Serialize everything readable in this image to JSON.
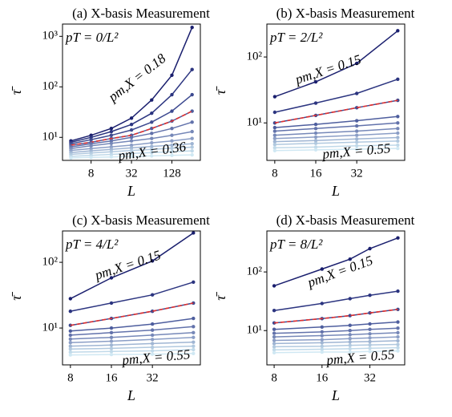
{
  "chart_data": [
    {
      "type": "line",
      "title": "(a) X-basis Measurement",
      "xlabel": "L",
      "ylabel": "τ̄",
      "xlog": true,
      "ylog": true,
      "x": [
        4,
        8,
        16,
        32,
        64,
        128,
        256
      ],
      "xlim": [
        3,
        340
      ],
      "xticks": [
        8,
        32,
        128
      ],
      "ylim": [
        3.5,
        1750
      ],
      "yticks": [
        {
          "value": 10,
          "label": "10¹"
        },
        {
          "value": 100,
          "label": "10²"
        },
        {
          "value": 1000,
          "label": "10³"
        }
      ],
      "annotations": [
        {
          "text": "pT = 0/L²",
          "color": "#1a1f6e"
        },
        {
          "text": "pm,X = 0.18",
          "color": "#1a1f6e"
        },
        {
          "text": "pm,X = 0.36",
          "color": "#c8e6f2"
        }
      ],
      "series": [
        {
          "color": "#1a1f6e",
          "values": [
            8.5,
            11,
            15,
            24,
            55,
            170,
            1500
          ]
        },
        {
          "color": "#2c3580",
          "values": [
            8,
            10,
            13,
            18,
            30,
            70,
            220
          ]
        },
        {
          "color": "#3d4a90",
          "values": [
            7.5,
            9,
            11,
            14,
            20,
            33,
            70
          ]
        },
        {
          "color": "#4e5e9e",
          "values": [
            7,
            8,
            9.5,
            11,
            15,
            21,
            33
          ]
        },
        {
          "color": "#e03030",
          "dash": true,
          "values": [
            7,
            8,
            9.5,
            11,
            15,
            21,
            33
          ]
        },
        {
          "color": "#6272ab",
          "values": [
            6.5,
            7.5,
            8.5,
            10,
            12,
            15,
            20
          ]
        },
        {
          "color": "#7688b8",
          "values": [
            6,
            6.8,
            7.6,
            8.5,
            9.5,
            11,
            13
          ]
        },
        {
          "color": "#8b9ec6",
          "values": [
            5.5,
            6,
            6.5,
            7,
            7.8,
            8.5,
            9.5
          ]
        },
        {
          "color": "#9fb5d3",
          "values": [
            5,
            5.4,
            5.8,
            6.2,
            6.6,
            7,
            7.5
          ]
        },
        {
          "color": "#b1c9df",
          "values": [
            4.6,
            4.9,
            5.2,
            5.5,
            5.8,
            6.1,
            6.4
          ]
        },
        {
          "color": "#c0d9e9",
          "values": [
            4.2,
            4.4,
            4.6,
            4.8,
            5,
            5.2,
            5.4
          ]
        },
        {
          "color": "#d0e8f3",
          "values": [
            3.9,
            4,
            4.1,
            4.2,
            4.3,
            4.4,
            4.5
          ]
        }
      ]
    },
    {
      "type": "line",
      "title": "(b) X-basis Measurement",
      "xlabel": "L",
      "ylabel": "τ̄",
      "xlog": true,
      "ylog": true,
      "x": [
        8,
        16,
        32,
        64
      ],
      "xlim": [
        7,
        72
      ],
      "xticks": [
        8,
        16,
        32
      ],
      "ylim": [
        2.7,
        316
      ],
      "yticks": [
        {
          "value": 10,
          "label": "10¹"
        },
        {
          "value": 100,
          "label": "10²"
        }
      ],
      "annotations": [
        {
          "text": "pT = 2/L²",
          "color": "#1a1f6e"
        },
        {
          "text": "pm,X = 0.15",
          "color": "#1a1f6e"
        },
        {
          "text": "pm,X = 0.55",
          "color": "#c8e6f2"
        }
      ],
      "series": [
        {
          "color": "#1a1f6e",
          "values": [
            25,
            42,
            80,
            250
          ]
        },
        {
          "color": "#2c3580",
          "values": [
            14.5,
            20,
            28,
            46
          ]
        },
        {
          "color": "#3d4a90",
          "values": [
            10,
            13,
            17,
            22
          ]
        },
        {
          "color": "#e03030",
          "dash": true,
          "values": [
            10,
            13,
            17,
            22
          ]
        },
        {
          "color": "#4e5e9e",
          "values": [
            8.5,
            9.5,
            10.8,
            12.5
          ]
        },
        {
          "color": "#6272ab",
          "values": [
            7.5,
            8.2,
            9,
            10
          ]
        },
        {
          "color": "#7688b8",
          "values": [
            6.5,
            7,
            7.5,
            8.2
          ]
        },
        {
          "color": "#8b9ec6",
          "values": [
            5.8,
            6.1,
            6.5,
            7
          ]
        },
        {
          "color": "#9fb5d3",
          "values": [
            5.2,
            5.4,
            5.7,
            6
          ]
        },
        {
          "color": "#b1c9df",
          "values": [
            4.7,
            4.9,
            5.1,
            5.3
          ]
        },
        {
          "color": "#c0d9e9",
          "values": [
            4.2,
            4.3,
            4.5,
            4.6
          ]
        },
        {
          "color": "#d0e8f3",
          "values": [
            3.8,
            3.9,
            4,
            4.1
          ]
        }
      ]
    },
    {
      "type": "line",
      "title": "(c) X-basis Measurement",
      "xlabel": "L",
      "ylabel": "τ̄",
      "xlog": true,
      "ylog": true,
      "x": [
        8,
        16,
        32,
        64
      ],
      "xlim": [
        7,
        72
      ],
      "xticks": [
        8,
        16,
        32
      ],
      "ylim": [
        2.75,
        300
      ],
      "yticks": [
        {
          "value": 10,
          "label": "10¹"
        },
        {
          "value": 100,
          "label": "10²"
        }
      ],
      "annotations": [
        {
          "text": "pT = 4/L²",
          "color": "#1a1f6e"
        },
        {
          "text": "pm,X = 0.15",
          "color": "#1a1f6e"
        },
        {
          "text": "pm,X = 0.55",
          "color": "#c8e6f2"
        }
      ],
      "series": [
        {
          "color": "#1a1f6e",
          "values": [
            28,
            58,
            105,
            280
          ]
        },
        {
          "color": "#2c3580",
          "values": [
            18,
            24,
            32,
            50
          ]
        },
        {
          "color": "#3d4a90",
          "values": [
            11,
            14,
            18,
            24
          ]
        },
        {
          "color": "#e03030",
          "dash": true,
          "values": [
            11,
            14,
            18,
            24
          ]
        },
        {
          "color": "#4e5e9e",
          "values": [
            9,
            10,
            11.5,
            14
          ]
        },
        {
          "color": "#6272ab",
          "values": [
            7.8,
            8.5,
            9.3,
            10.5
          ]
        },
        {
          "color": "#7688b8",
          "values": [
            6.8,
            7.2,
            7.8,
            8.5
          ]
        },
        {
          "color": "#8b9ec6",
          "values": [
            6,
            6.3,
            6.7,
            7.2
          ]
        },
        {
          "color": "#9fb5d3",
          "values": [
            5.3,
            5.5,
            5.8,
            6.1
          ]
        },
        {
          "color": "#b1c9df",
          "values": [
            4.8,
            4.9,
            5.1,
            5.3
          ]
        },
        {
          "color": "#c0d9e9",
          "values": [
            4.3,
            4.4,
            4.5,
            4.7
          ]
        },
        {
          "color": "#d0e8f3",
          "values": [
            3.9,
            3.95,
            4,
            4.1
          ]
        }
      ]
    },
    {
      "type": "line",
      "title": "(d) X-basis Measurement",
      "xlabel": "L",
      "ylabel": "τ̄",
      "xlog": true,
      "ylog": true,
      "x": [
        8,
        16,
        24,
        32,
        48
      ],
      "xlim": [
        7.2,
        53
      ],
      "xticks": [
        8,
        16,
        32
      ],
      "ylim": [
        2.6,
        500
      ],
      "yticks": [
        {
          "value": 10,
          "label": "10¹"
        },
        {
          "value": 100,
          "label": "10²"
        }
      ],
      "annotations": [
        {
          "text": "pT = 8/L²",
          "color": "#1a1f6e"
        },
        {
          "text": "pm,X = 0.15",
          "color": "#1a1f6e"
        },
        {
          "text": "pm,X = 0.55",
          "color": "#c8e6f2"
        }
      ],
      "series": [
        {
          "color": "#1a1f6e",
          "values": [
            58,
            112,
            165,
            250,
            380
          ]
        },
        {
          "color": "#2c3580",
          "values": [
            22,
            29,
            35,
            40,
            47
          ]
        },
        {
          "color": "#3d4a90",
          "values": [
            13.5,
            16,
            18,
            20,
            23
          ]
        },
        {
          "color": "#e03030",
          "dash": true,
          "values": [
            13.5,
            16,
            18,
            20,
            23
          ]
        },
        {
          "color": "#4e5e9e",
          "values": [
            10.5,
            11.5,
            12.3,
            13,
            14
          ]
        },
        {
          "color": "#6272ab",
          "values": [
            9,
            9.5,
            10,
            10.5,
            11
          ]
        },
        {
          "color": "#7688b8",
          "values": [
            7.8,
            8.2,
            8.5,
            8.8,
            9.2
          ]
        },
        {
          "color": "#8b9ec6",
          "values": [
            6.8,
            7,
            7.3,
            7.5,
            7.8
          ]
        },
        {
          "color": "#9fb5d3",
          "values": [
            6,
            6.2,
            6.4,
            6.5,
            6.7
          ]
        },
        {
          "color": "#b1c9df",
          "values": [
            5.3,
            5.4,
            5.6,
            5.7,
            5.8
          ]
        },
        {
          "color": "#c0d9e9",
          "values": [
            4.7,
            4.8,
            4.9,
            5,
            5.1
          ]
        },
        {
          "color": "#d0e8f3",
          "values": [
            4.2,
            4.3,
            4.3,
            4.4,
            4.5
          ]
        }
      ]
    }
  ]
}
